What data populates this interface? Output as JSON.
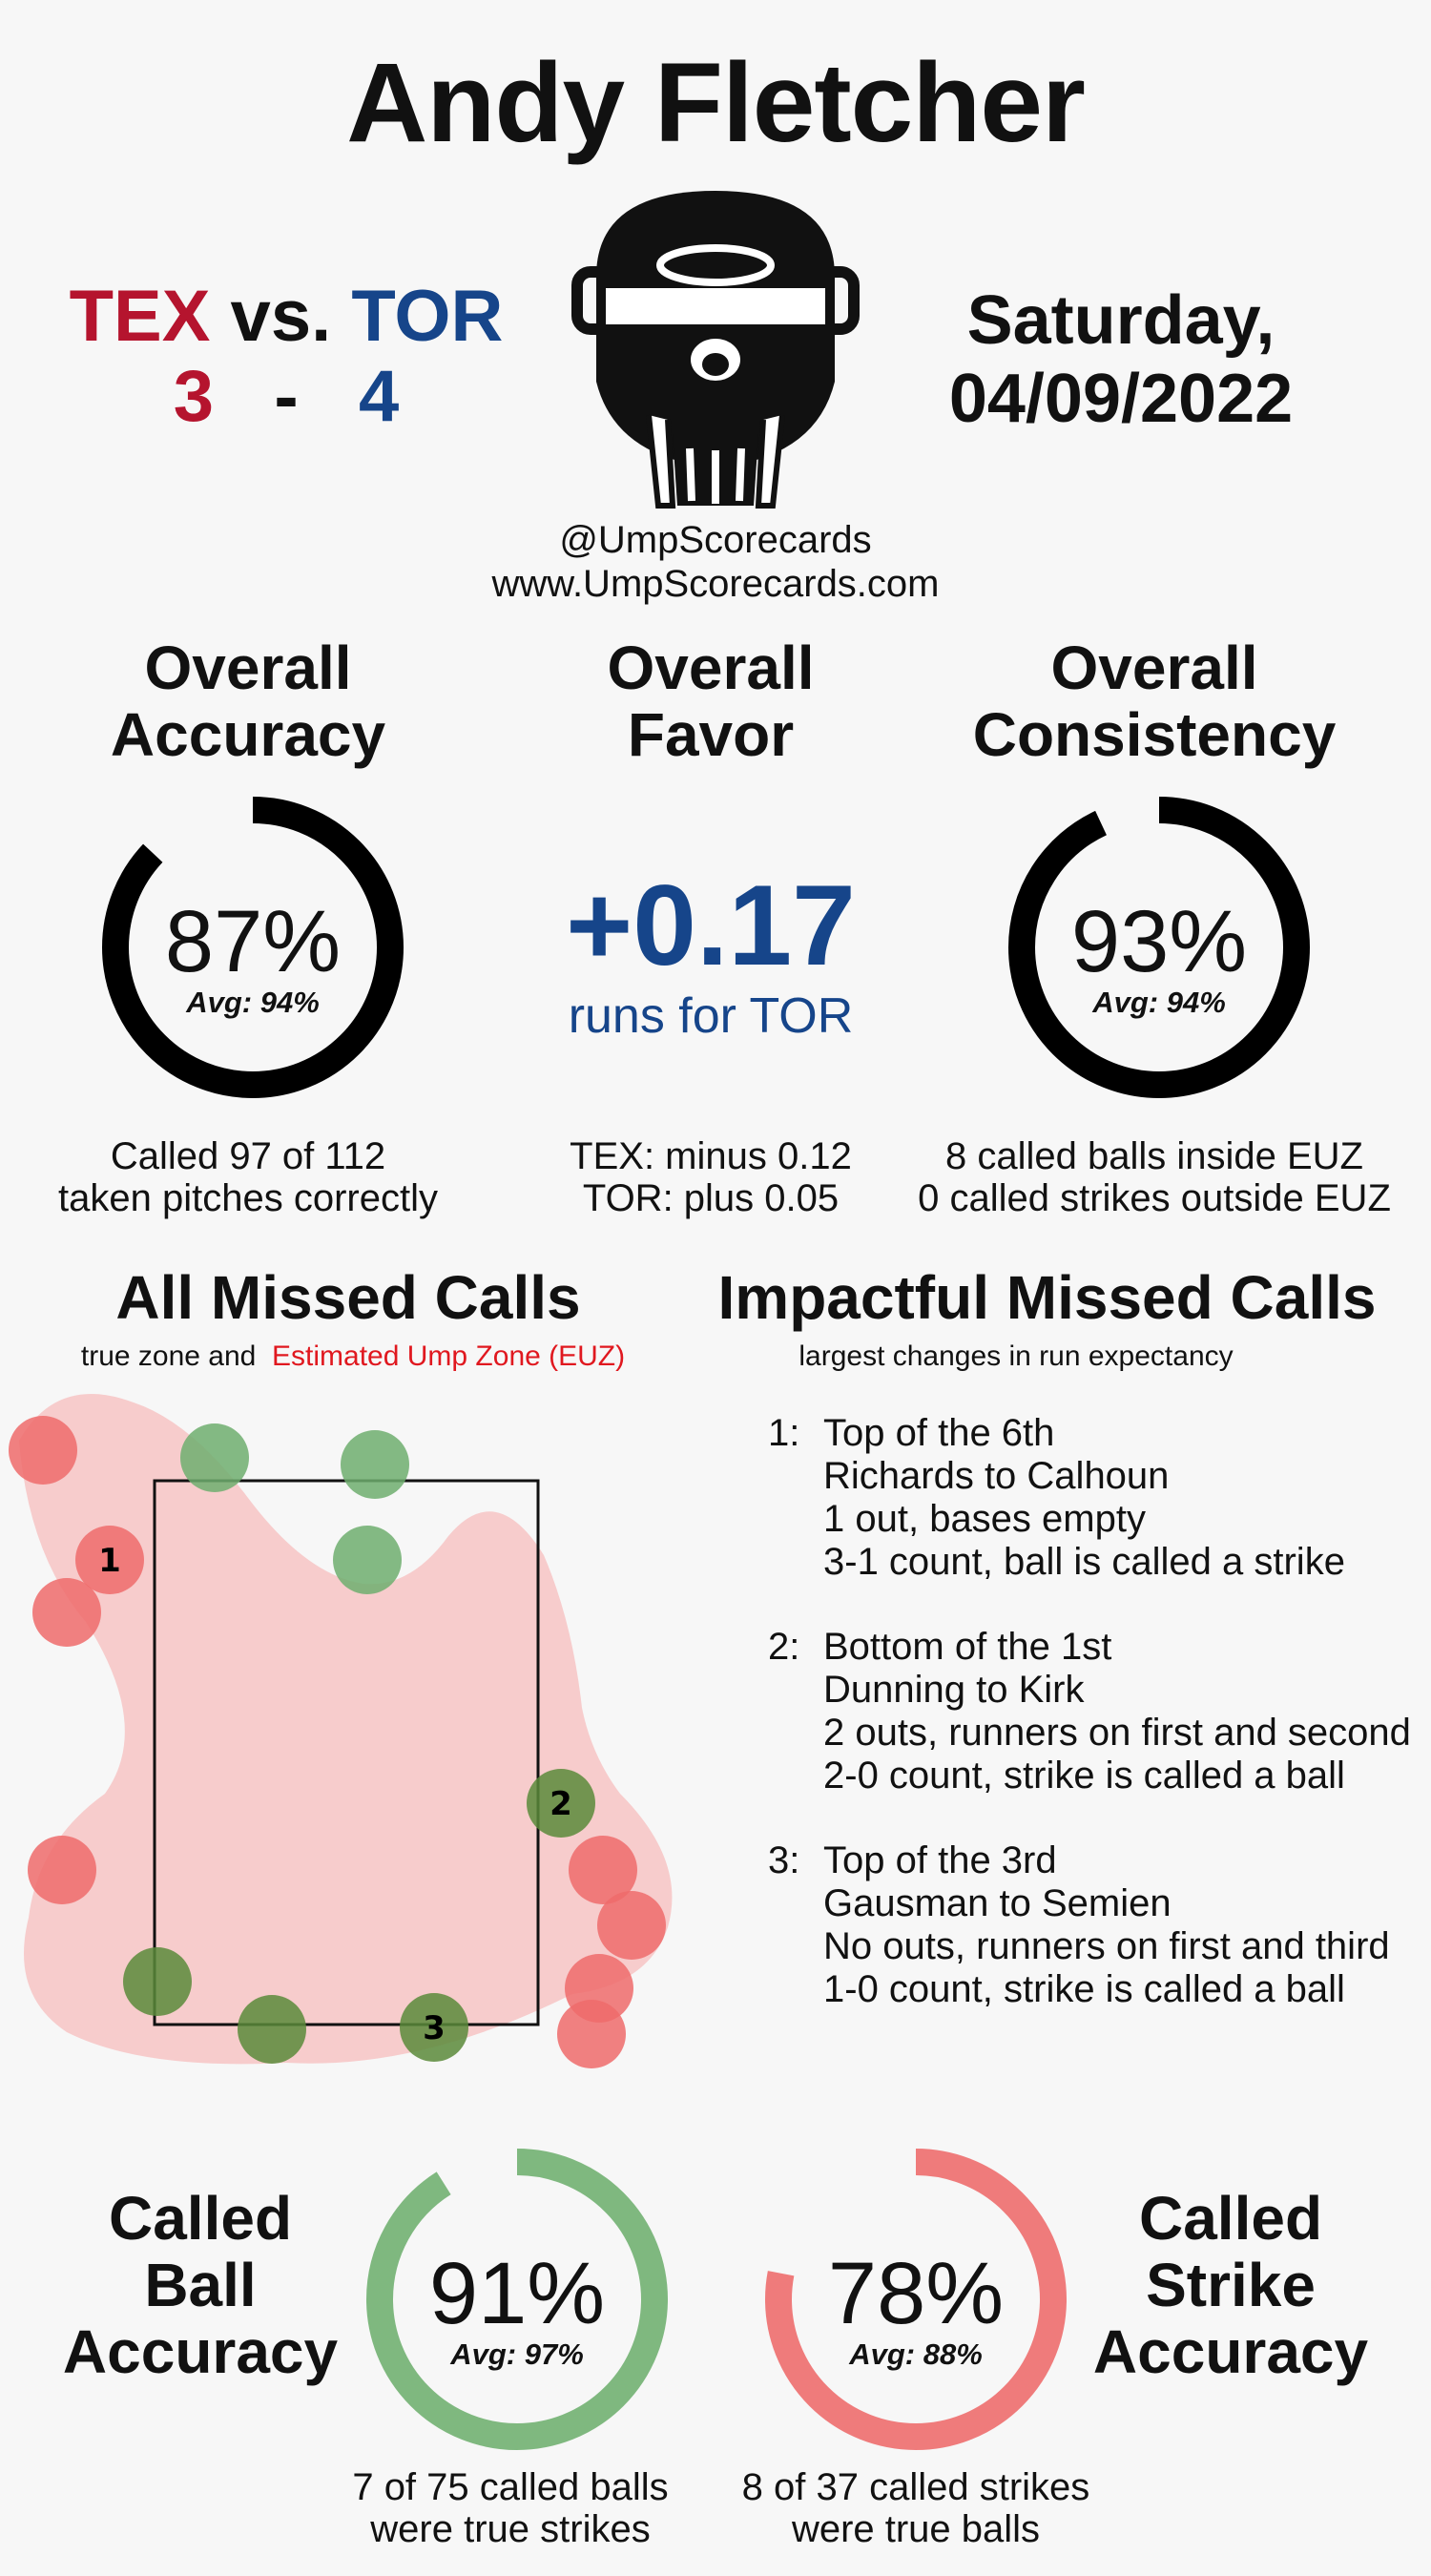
{
  "header": {
    "umpire_name": "Andy Fletcher",
    "away_team": "TEX",
    "vs_label": "vs.",
    "home_team": "TOR",
    "away_score": "3",
    "score_separator": "-",
    "home_score": "4",
    "date_line1": "Saturday,",
    "date_line2": "04/09/2022",
    "handle": "@UmpScorecards",
    "website": "www.UmpScorecards.com",
    "logo_icon": "catcher-mask-icon"
  },
  "colors": {
    "away_red": "#b5142e",
    "home_blue": "#16458a",
    "ball_green": "#7fb87f",
    "strike_red": "#ef7b7b",
    "euz_fill": "#f7c4c4"
  },
  "accuracy": {
    "title_line1": "Overall",
    "title_line2": "Accuracy",
    "value": "87%",
    "fraction": 0.87,
    "avg": "Avg: 94%",
    "desc_line1": "Called 97 of 112",
    "desc_line2": "taken pitches correctly"
  },
  "favor": {
    "title_line1": "Overall",
    "title_line2": "Favor",
    "value": "+0.17",
    "subtitle": "runs for TOR",
    "desc_line1": "TEX: minus 0.12",
    "desc_line2": "TOR: plus 0.05"
  },
  "consistency": {
    "title_line1": "Overall",
    "title_line2": "Consistency",
    "value": "93%",
    "fraction": 0.93,
    "avg": "Avg: 94%",
    "desc_line1": "8 called balls inside EUZ",
    "desc_line2": "0 called strikes outside EUZ"
  },
  "missed_calls": {
    "title": "All Missed Calls",
    "legend_prefix": "true zone and",
    "legend_euz": "Estimated Ump Zone (EUZ)",
    "labels": [
      "1",
      "2",
      "3"
    ]
  },
  "impactful": {
    "title": "Impactful Missed Calls",
    "subtitle": "largest changes in run expectancy",
    "items": [
      {
        "num": "1:",
        "line1": "Top of the 6th",
        "line2": "Richards to Calhoun",
        "line3": "1 out, bases empty",
        "line4": "3-1 count, ball is called a strike"
      },
      {
        "num": "2:",
        "line1": "Bottom of the 1st",
        "line2": "Dunning to Kirk",
        "line3": "2 outs, runners on first and second",
        "line4": "2-0 count, strike is called a ball"
      },
      {
        "num": "3:",
        "line1": "Top of the 3rd",
        "line2": "Gausman to Semien",
        "line3": "No outs, runners on first and third",
        "line4": "1-0 count, strike is called a ball"
      }
    ]
  },
  "ball_accuracy": {
    "title_line1": "Called",
    "title_line2": "Ball",
    "title_line3": "Accuracy",
    "value": "91%",
    "fraction": 0.91,
    "avg": "Avg: 97%",
    "desc_line1": "7 of 75 called balls",
    "desc_line2": "were true strikes"
  },
  "strike_accuracy": {
    "title_line1": "Called",
    "title_line2": "Strike",
    "title_line3": "Accuracy",
    "value": "78%",
    "fraction": 0.78,
    "avg": "Avg: 88%",
    "desc_line1": "8 of 37 called strikes",
    "desc_line2": "were true balls"
  }
}
